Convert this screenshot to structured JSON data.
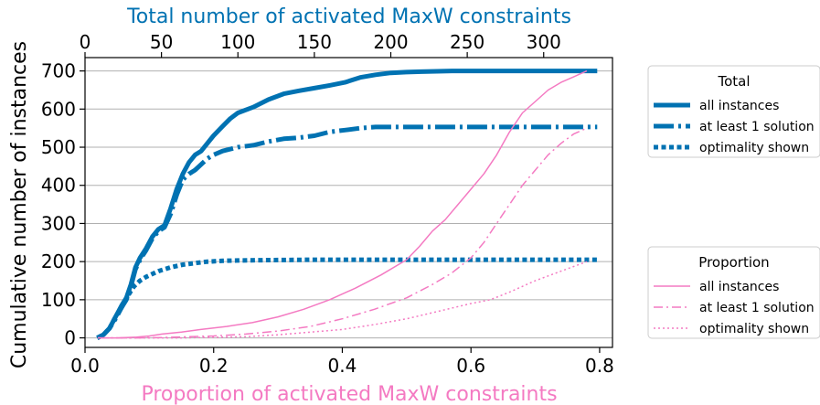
{
  "chart_data": {
    "type": "line",
    "title": "",
    "xlabel": "Proportion of activated MaxW constraints",
    "x2label": "Total number of activated MaxW constraints",
    "ylabel": "Cumulative number of instances",
    "xlim": [
      0.0,
      0.82
    ],
    "x2lim": [
      0,
      345
    ],
    "ylim": [
      -25,
      735
    ],
    "xticks": [
      "0.0",
      "0.2",
      "0.4",
      "0.6",
      "0.8"
    ],
    "xtick_values": [
      0.0,
      0.2,
      0.4,
      0.6,
      0.8
    ],
    "x2ticks": [
      "0",
      "50",
      "100",
      "150",
      "200",
      "250",
      "300"
    ],
    "x2tick_values": [
      0,
      50,
      100,
      150,
      200,
      250,
      300
    ],
    "yticks": [
      "0",
      "100",
      "200",
      "300",
      "400",
      "500",
      "600",
      "700"
    ],
    "ytick_values": [
      0,
      100,
      200,
      300,
      400,
      500,
      600,
      700
    ],
    "grid": "horizontal",
    "colors": {
      "total": "#0072b2",
      "proportion": "#f47ac2",
      "x2label": "#0072b2",
      "xlabel": "#f47ac2"
    },
    "legends": [
      {
        "title": "Total",
        "placement": "top-right outside",
        "entries": [
          "all instances",
          "at least 1 solution",
          "optimality shown"
        ]
      },
      {
        "title": "Proportion",
        "placement": "lower-right outside",
        "entries": [
          "all instances",
          "at least 1 solution",
          "optimality shown"
        ]
      }
    ],
    "series": [
      {
        "group": "Total",
        "name": "all instances",
        "axis": "top",
        "style": "solid",
        "points": [
          [
            8,
            0
          ],
          [
            12,
            8
          ],
          [
            16,
            25
          ],
          [
            20,
            55
          ],
          [
            24,
            85
          ],
          [
            27,
            105
          ],
          [
            30,
            140
          ],
          [
            33,
            185
          ],
          [
            36,
            210
          ],
          [
            40,
            235
          ],
          [
            44,
            265
          ],
          [
            48,
            285
          ],
          [
            52,
            295
          ],
          [
            56,
            340
          ],
          [
            60,
            390
          ],
          [
            64,
            430
          ],
          [
            68,
            460
          ],
          [
            72,
            480
          ],
          [
            76,
            490
          ],
          [
            80,
            510
          ],
          [
            84,
            530
          ],
          [
            90,
            555
          ],
          [
            95,
            575
          ],
          [
            100,
            590
          ],
          [
            110,
            605
          ],
          [
            120,
            625
          ],
          [
            130,
            640
          ],
          [
            140,
            648
          ],
          [
            150,
            655
          ],
          [
            160,
            662
          ],
          [
            170,
            670
          ],
          [
            180,
            683
          ],
          [
            190,
            690
          ],
          [
            200,
            695
          ],
          [
            210,
            697
          ],
          [
            220,
            698
          ],
          [
            230,
            699
          ],
          [
            240,
            700
          ],
          [
            250,
            700
          ],
          [
            260,
            700
          ],
          [
            270,
            700
          ],
          [
            280,
            700
          ],
          [
            335,
            700
          ]
        ]
      },
      {
        "group": "Total",
        "name": "at least 1 solution",
        "axis": "top",
        "style": "dashdot",
        "points": [
          [
            8,
            0
          ],
          [
            12,
            8
          ],
          [
            16,
            25
          ],
          [
            20,
            50
          ],
          [
            24,
            80
          ],
          [
            27,
            100
          ],
          [
            30,
            135
          ],
          [
            33,
            180
          ],
          [
            36,
            205
          ],
          [
            40,
            230
          ],
          [
            44,
            260
          ],
          [
            48,
            280
          ],
          [
            52,
            290
          ],
          [
            56,
            325
          ],
          [
            60,
            375
          ],
          [
            64,
            415
          ],
          [
            68,
            430
          ],
          [
            72,
            440
          ],
          [
            76,
            455
          ],
          [
            80,
            470
          ],
          [
            84,
            480
          ],
          [
            90,
            490
          ],
          [
            95,
            495
          ],
          [
            100,
            500
          ],
          [
            110,
            505
          ],
          [
            120,
            515
          ],
          [
            130,
            522
          ],
          [
            140,
            525
          ],
          [
            150,
            530
          ],
          [
            160,
            540
          ],
          [
            170,
            545
          ],
          [
            180,
            550
          ],
          [
            190,
            553
          ],
          [
            200,
            553
          ],
          [
            335,
            553
          ]
        ]
      },
      {
        "group": "Total",
        "name": "optimality shown",
        "axis": "top",
        "style": "dotted",
        "points": [
          [
            8,
            0
          ],
          [
            12,
            8
          ],
          [
            16,
            25
          ],
          [
            20,
            55
          ],
          [
            24,
            80
          ],
          [
            28,
            110
          ],
          [
            32,
            135
          ],
          [
            36,
            150
          ],
          [
            40,
            160
          ],
          [
            48,
            175
          ],
          [
            56,
            185
          ],
          [
            64,
            192
          ],
          [
            72,
            196
          ],
          [
            80,
            200
          ],
          [
            90,
            202
          ],
          [
            100,
            203
          ],
          [
            120,
            204
          ],
          [
            150,
            205
          ],
          [
            200,
            205
          ],
          [
            335,
            205
          ]
        ]
      },
      {
        "group": "Proportion",
        "name": "all instances",
        "axis": "bottom",
        "style": "solid",
        "points": [
          [
            0.02,
            0
          ],
          [
            0.05,
            0
          ],
          [
            0.08,
            2
          ],
          [
            0.1,
            5
          ],
          [
            0.12,
            10
          ],
          [
            0.15,
            15
          ],
          [
            0.18,
            22
          ],
          [
            0.22,
            30
          ],
          [
            0.26,
            40
          ],
          [
            0.3,
            55
          ],
          [
            0.34,
            75
          ],
          [
            0.38,
            100
          ],
          [
            0.42,
            130
          ],
          [
            0.46,
            165
          ],
          [
            0.5,
            205
          ],
          [
            0.52,
            240
          ],
          [
            0.54,
            280
          ],
          [
            0.56,
            310
          ],
          [
            0.58,
            350
          ],
          [
            0.6,
            390
          ],
          [
            0.62,
            430
          ],
          [
            0.64,
            480
          ],
          [
            0.66,
            540
          ],
          [
            0.68,
            590
          ],
          [
            0.7,
            620
          ],
          [
            0.72,
            650
          ],
          [
            0.74,
            670
          ],
          [
            0.76,
            685
          ],
          [
            0.78,
            700
          ]
        ]
      },
      {
        "group": "Proportion",
        "name": "at least 1 solution",
        "axis": "bottom",
        "style": "dashdot",
        "points": [
          [
            0.02,
            0
          ],
          [
            0.08,
            0
          ],
          [
            0.12,
            1
          ],
          [
            0.16,
            3
          ],
          [
            0.2,
            5
          ],
          [
            0.25,
            10
          ],
          [
            0.3,
            18
          ],
          [
            0.35,
            30
          ],
          [
            0.4,
            50
          ],
          [
            0.45,
            75
          ],
          [
            0.5,
            105
          ],
          [
            0.54,
            140
          ],
          [
            0.57,
            170
          ],
          [
            0.6,
            210
          ],
          [
            0.62,
            250
          ],
          [
            0.64,
            300
          ],
          [
            0.66,
            350
          ],
          [
            0.68,
            400
          ],
          [
            0.7,
            440
          ],
          [
            0.72,
            480
          ],
          [
            0.74,
            510
          ],
          [
            0.76,
            535
          ],
          [
            0.78,
            550
          ]
        ]
      },
      {
        "group": "Proportion",
        "name": "optimality shown",
        "axis": "bottom",
        "style": "dotted",
        "points": [
          [
            0.02,
            0
          ],
          [
            0.15,
            0
          ],
          [
            0.25,
            3
          ],
          [
            0.3,
            8
          ],
          [
            0.35,
            15
          ],
          [
            0.4,
            22
          ],
          [
            0.45,
            35
          ],
          [
            0.5,
            50
          ],
          [
            0.55,
            70
          ],
          [
            0.6,
            90
          ],
          [
            0.63,
            100
          ],
          [
            0.66,
            120
          ],
          [
            0.7,
            150
          ],
          [
            0.74,
            175
          ],
          [
            0.78,
            200
          ]
        ]
      }
    ]
  }
}
